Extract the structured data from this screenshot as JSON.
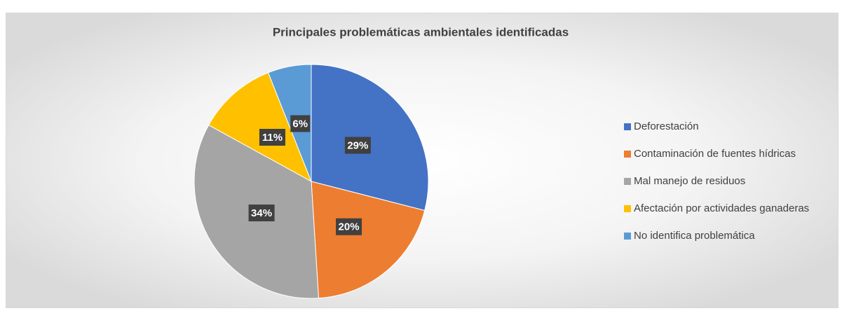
{
  "chart_data": {
    "type": "pie",
    "title": "Principales problemáticas ambientales identificadas",
    "categories": [
      "Deforestación",
      "Contaminación de fuentes hídricas",
      "Mal manejo de residuos",
      "Afectación por actividades ganaderas",
      "No identifica problemática"
    ],
    "values": [
      29,
      20,
      34,
      11,
      6
    ],
    "value_labels": [
      "29%",
      "20%",
      "34%",
      "11%",
      "6%"
    ],
    "colors": [
      "#4472c4",
      "#ed7d31",
      "#a5a5a5",
      "#ffc000",
      "#5b9bd5"
    ],
    "legend": "right"
  }
}
